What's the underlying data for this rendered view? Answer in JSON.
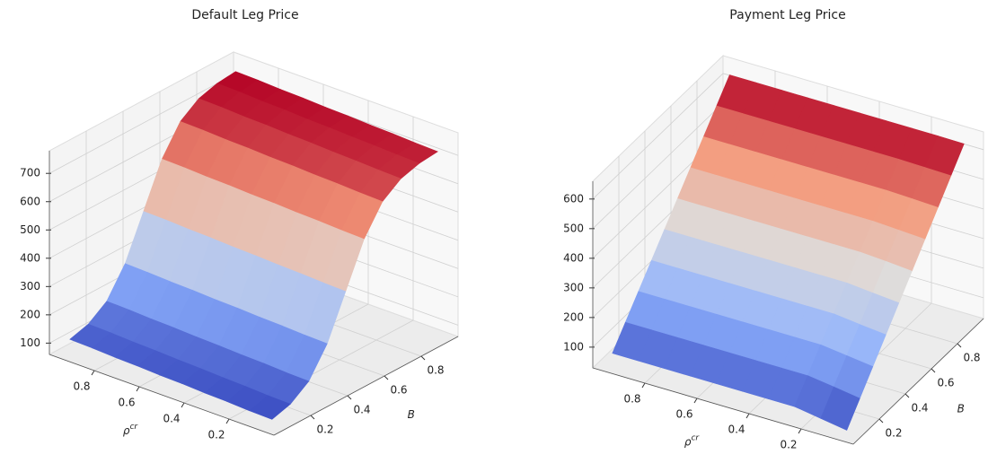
{
  "chart_data": [
    {
      "type": "surface",
      "title": "Default Leg Price",
      "xlabel": "ρ",
      "xlabel_sup": "cr",
      "ylabel": "B",
      "colormap": "coolwarm",
      "x": [
        0.05,
        0.15,
        0.25,
        0.35,
        0.45,
        0.55,
        0.65,
        0.75,
        0.85,
        0.95
      ],
      "y": [
        0.05,
        0.15,
        0.25,
        0.35,
        0.45,
        0.55,
        0.65,
        0.75,
        0.85,
        0.95
      ],
      "z": [
        [
          84,
          103,
          149,
          247,
          397,
          547,
          645,
          691,
          710,
          717
        ],
        [
          86,
          105,
          151,
          249,
          399,
          549,
          647,
          693,
          712,
          719
        ],
        [
          90,
          109,
          155,
          253,
          403,
          553,
          651,
          697,
          716,
          723
        ],
        [
          92,
          111,
          157,
          255,
          405,
          555,
          653,
          699,
          718,
          725
        ],
        [
          96,
          115,
          161,
          259,
          409,
          559,
          657,
          703,
          722,
          729
        ],
        [
          98,
          117,
          163,
          261,
          411,
          561,
          659,
          705,
          724,
          731
        ],
        [
          102,
          121,
          167,
          265,
          415,
          565,
          663,
          709,
          728,
          735
        ],
        [
          104,
          123,
          169,
          267,
          417,
          567,
          665,
          711,
          730,
          737
        ],
        [
          108,
          127,
          173,
          271,
          421,
          571,
          669,
          715,
          734,
          741
        ],
        [
          110,
          129,
          175,
          273,
          423,
          573,
          671,
          717,
          736,
          743
        ]
      ],
      "xlim": [
        0,
        1
      ],
      "ylim": [
        0,
        1
      ],
      "zlim": [
        60,
        780
      ],
      "xticks": [
        0.2,
        0.4,
        0.6,
        0.8
      ],
      "yticks": [
        0.2,
        0.4,
        0.6,
        0.8
      ],
      "zticks": [
        100,
        200,
        300,
        400,
        500,
        600,
        700
      ],
      "grid": true
    },
    {
      "type": "surface",
      "title": "Payment Leg Price",
      "xlabel": "ρ",
      "xlabel_sup": "cr",
      "ylabel": "B",
      "colormap": "coolwarm",
      "x": [
        0.05,
        0.15,
        0.25,
        0.35,
        0.45,
        0.55,
        0.65,
        0.75,
        0.85,
        0.95
      ],
      "y": [
        0.05,
        0.15,
        0.25,
        0.35,
        0.45,
        0.55,
        0.65,
        0.75,
        0.85,
        0.95
      ],
      "z": [
        [
          43,
          108,
          173,
          238,
          303,
          368,
          433,
          498,
          563,
          628
        ],
        [
          57,
          121,
          184,
          247,
          311,
          375,
          438,
          502,
          565,
          629
        ],
        [
          71,
          133,
          195,
          257,
          319,
          381,
          443,
          505,
          567,
          629
        ],
        [
          71,
          133,
          195,
          257,
          319,
          381,
          443,
          505,
          567,
          629
        ],
        [
          71,
          133,
          195,
          257,
          319,
          381,
          443,
          505,
          567,
          629
        ],
        [
          71,
          133,
          195,
          257,
          319,
          381,
          443,
          505,
          567,
          629
        ],
        [
          71,
          133,
          195,
          257,
          319,
          381,
          443,
          505,
          567,
          629
        ],
        [
          71,
          133,
          195,
          257,
          319,
          381,
          443,
          505,
          567,
          629
        ],
        [
          71,
          133,
          195,
          257,
          319,
          381,
          443,
          505,
          567,
          629
        ],
        [
          71,
          133,
          195,
          257,
          319,
          381,
          443,
          505,
          567,
          629
        ]
      ],
      "xlim": [
        0,
        1
      ],
      "ylim": [
        0,
        1
      ],
      "zlim": [
        30,
        660
      ],
      "xticks": [
        0.2,
        0.4,
        0.6,
        0.8
      ],
      "yticks": [
        0.2,
        0.4,
        0.6,
        0.8
      ],
      "zticks": [
        100,
        200,
        300,
        400,
        500,
        600
      ],
      "grid": true
    }
  ]
}
